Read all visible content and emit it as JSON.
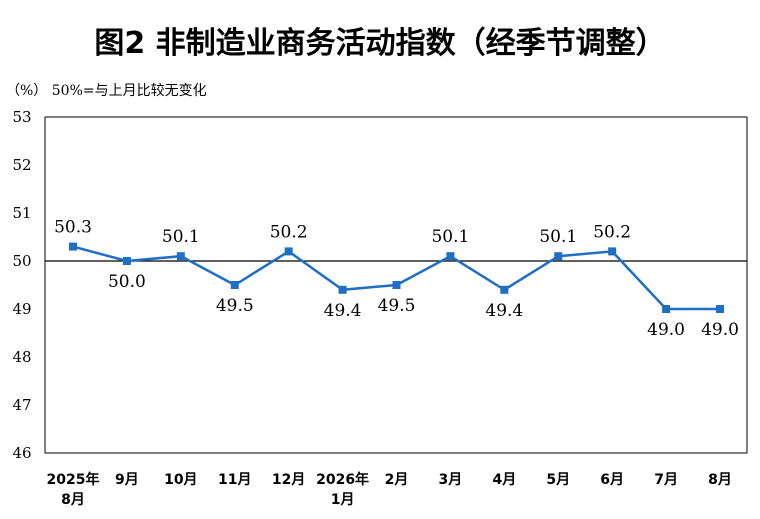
{
  "title": "图2  非制造业商务活动指数（经季节调整）",
  "unit_note": "（%）  50%=与上月比较无变化",
  "chart_data": {
    "type": "line",
    "title": "图2  非制造业商务活动指数（经季节调整）",
    "ylabel": "（%）",
    "annotation": "50%=与上月比较无变化",
    "categories": [
      [
        "2025年",
        "8月"
      ],
      [
        "9月"
      ],
      [
        "10月"
      ],
      [
        "11月"
      ],
      [
        "12月"
      ],
      [
        "2026年",
        "1月"
      ],
      [
        "2月"
      ],
      [
        "3月"
      ],
      [
        "4月"
      ],
      [
        "5月"
      ],
      [
        "6月"
      ],
      [
        "7月"
      ],
      [
        "8月"
      ]
    ],
    "values": [
      50.3,
      50.0,
      50.1,
      49.5,
      50.2,
      49.4,
      49.5,
      50.1,
      49.4,
      50.1,
      50.2,
      49.0,
      49.0
    ],
    "labels": [
      "50.3",
      "50.0",
      "50.1",
      "49.5",
      "50.2",
      "49.4",
      "49.5",
      "50.1",
      "49.4",
      "50.1",
      "50.2",
      "49.0",
      "49.0"
    ],
    "ylim": [
      46,
      53
    ],
    "yticks": [
      46,
      47,
      48,
      49,
      50,
      51,
      52,
      53
    ],
    "reference_line": 50,
    "grid": false,
    "line_color": "#1f6fc5"
  }
}
